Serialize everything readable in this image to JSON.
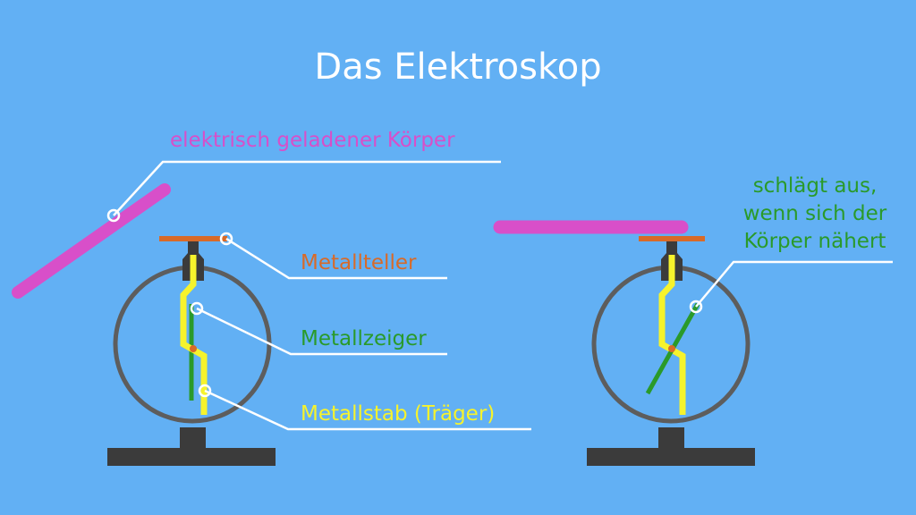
{
  "title": "Das Elektroskop",
  "labels": {
    "charged_body": "elektrisch geladener Körper",
    "metal_plate": "Metallteller",
    "metal_pointer": "Metallzeiger",
    "metal_rod": "Metallstab (Träger)",
    "deflection": [
      "schlägt aus,",
      "wenn sich der",
      "Körper nähert"
    ]
  },
  "colors": {
    "background": "#62b0f4",
    "title": "#ffffff",
    "charged_body": "#d84fc9",
    "metal_plate": "#d86a28",
    "metal_pointer": "#2a9a2a",
    "metal_rod": "#f6f32c",
    "housing": "#5d5d5d",
    "stand": "#3b3b3b",
    "leader_line": "#ffffff"
  }
}
